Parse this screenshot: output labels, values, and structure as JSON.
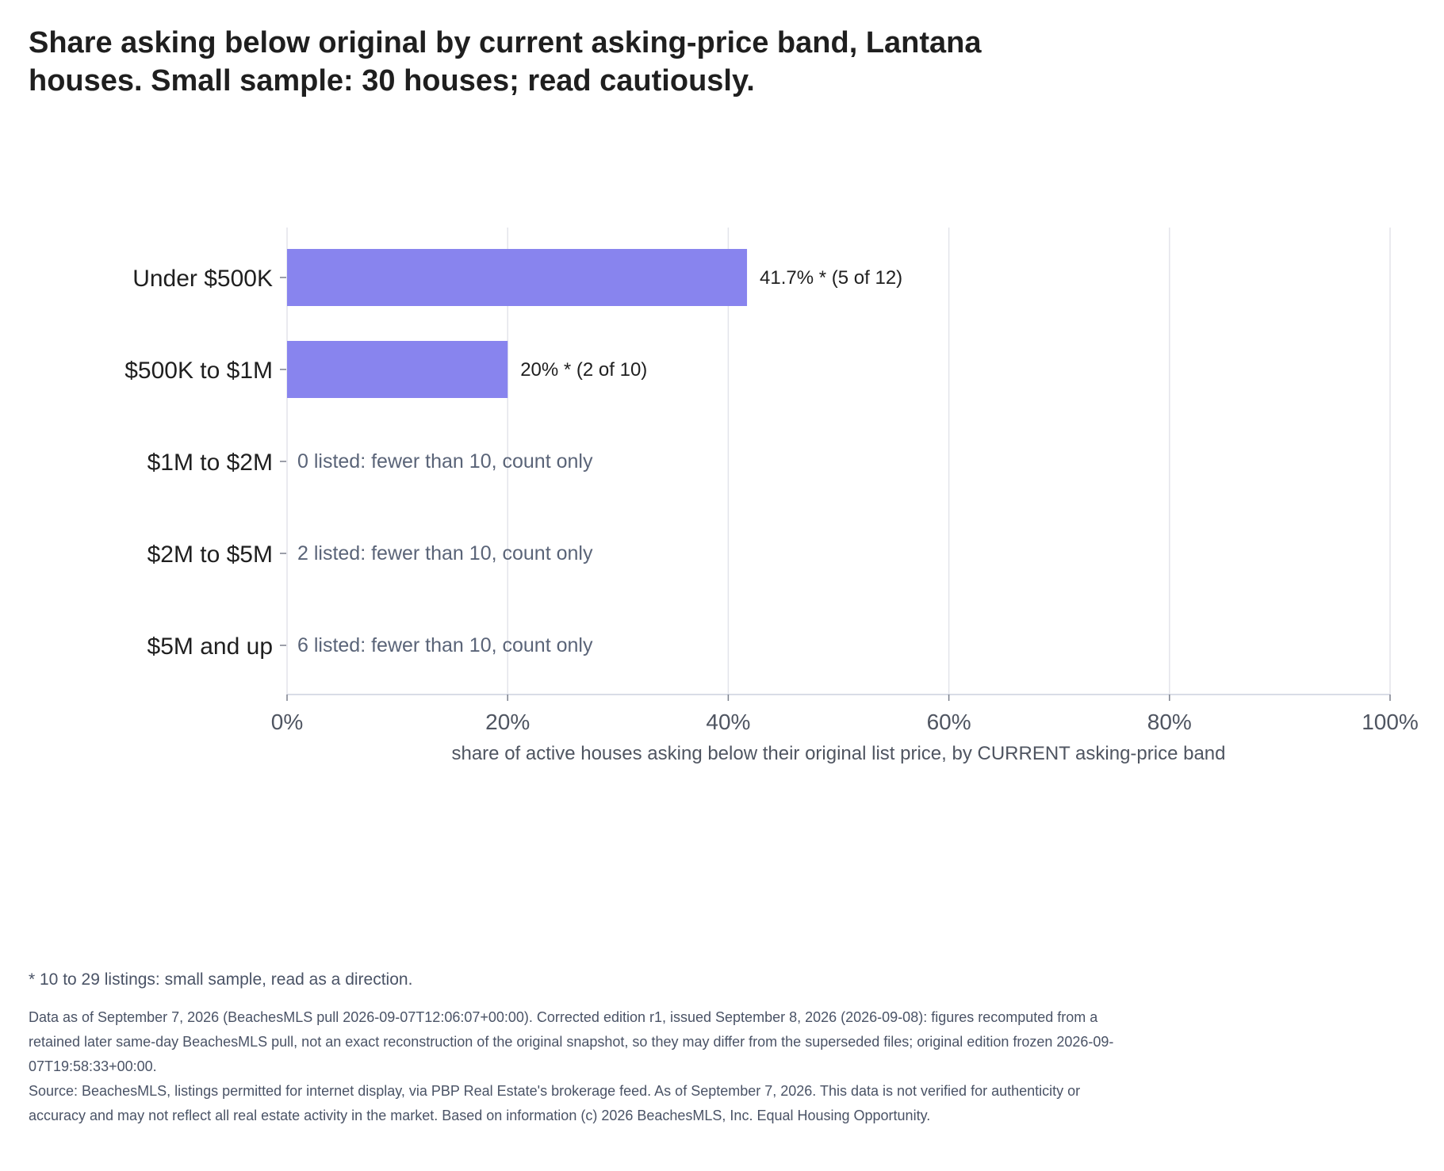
{
  "chart_data": {
    "type": "bar",
    "orientation": "horizontal",
    "title": "Share asking below original by current asking-price band, Lantana houses. Small sample: 30 houses; read cautiously.",
    "xlabel": "share of active houses asking below their original list price, by CURRENT asking-price band",
    "ylabel": "",
    "xlim": [
      0,
      100
    ],
    "x_ticks": [
      "0%",
      "20%",
      "40%",
      "60%",
      "80%",
      "100%"
    ],
    "x_tick_values": [
      0,
      20,
      40,
      60,
      80,
      100
    ],
    "grid": true,
    "categories": [
      "Under $500K",
      "$500K to $1M",
      "$1M to $2M",
      "$2M to $5M",
      "$5M and up"
    ],
    "values": [
      41.7,
      20,
      null,
      null,
      null
    ],
    "bar_labels": [
      "41.7% *  (5 of 12)",
      "20% *  (2 of 10)",
      "",
      "",
      ""
    ],
    "count_only_labels": [
      "",
      "",
      "0 listed: fewer than 10, count only",
      "2 listed: fewer than 10, count only",
      "6 listed: fewer than 10, count only"
    ],
    "bar_color": "#8884ee",
    "count_label_color": "#5a6478"
  },
  "footnote": "* 10 to 29 listings: small sample, read as a direction.",
  "notes": {
    "data_as_of": "Data as of September 7, 2026 (BeachesMLS pull 2026-09-07T12:06:07+00:00). Corrected edition r1, issued September 8, 2026 (2026-09-08): figures recomputed from a retained later same-day BeachesMLS pull, not an exact reconstruction of the original snapshot, so they may differ from the superseded files; original edition frozen 2026-09-07T19:58:33+00:00.",
    "source": "Source: BeachesMLS, listings permitted for internet display, via PBP Real Estate's brokerage feed. As of September 7, 2026. This data is not verified for authenticity or accuracy and may not reflect all real estate activity in the market. Based on information (c) 2026 BeachesMLS, Inc. Equal Housing Opportunity."
  }
}
